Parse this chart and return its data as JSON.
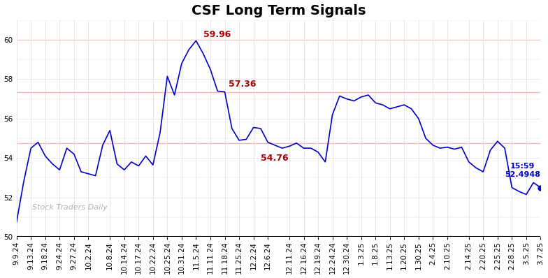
{
  "title": "CSF Long Term Signals",
  "watermark": "Stock Traders Daily",
  "ylim": [
    50,
    61
  ],
  "hlines": [
    54.76,
    57.36,
    60.0
  ],
  "hline_color": "#ffb3b3",
  "line_color": "#0000cc",
  "annotation_color": "#aa0000",
  "last_label_time": "15:59",
  "last_label_value": "52.4948",
  "last_label_color": "#0000cc",
  "x_labels": [
    "9.9.24",
    "9.13.24",
    "9.18.24",
    "9.24.24",
    "9.27.24",
    "10.2.24",
    "10.8.24",
    "10.14.24",
    "10.17.24",
    "10.22.24",
    "10.25.24",
    "10.31.24",
    "11.5.24",
    "11.11.24",
    "11.18.24",
    "11.25.24",
    "12.2.24",
    "12.6.24",
    "12.11.24",
    "12.16.24",
    "12.19.24",
    "12.24.24",
    "12.30.24",
    "1.3.25",
    "1.8.25",
    "1.13.25",
    "1.20.25",
    "1.30.25",
    "2.4.25",
    "2.10.25",
    "2.14.25",
    "2.20.25",
    "2.25.25",
    "2.28.25",
    "3.5.25",
    "3.7.25"
  ],
  "y_values": [
    50.75,
    52.8,
    54.5,
    54.8,
    54.1,
    53.7,
    53.4,
    54.5,
    54.2,
    53.3,
    53.2,
    53.1,
    54.65,
    55.4,
    53.7,
    53.4,
    53.8,
    53.6,
    54.1,
    53.65,
    55.3,
    58.15,
    57.2,
    58.8,
    59.5,
    59.96,
    59.3,
    58.5,
    57.4,
    57.36,
    55.5,
    54.9,
    54.95,
    55.55,
    55.5,
    54.8,
    54.65,
    54.5,
    54.6,
    54.76,
    54.5,
    54.5,
    54.3,
    53.8,
    56.2,
    57.15,
    57.0,
    56.9,
    57.1,
    57.2,
    56.8,
    56.7,
    56.5,
    56.6,
    56.7,
    56.5,
    56.0,
    55.0,
    54.65,
    54.5,
    54.55,
    54.45,
    54.55,
    53.8,
    53.5,
    53.3,
    54.4,
    54.85,
    54.5,
    52.5,
    52.3,
    52.15,
    52.75,
    52.4948
  ],
  "background_color": "#ffffff",
  "grid_color": "#dddddd",
  "title_fontsize": 14,
  "tick_fontsize": 7.5
}
